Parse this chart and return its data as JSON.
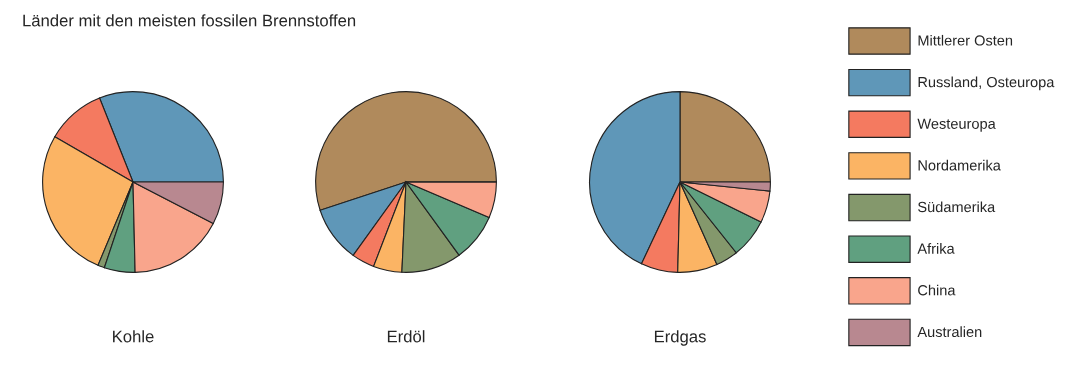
{
  "chart_data": [
    {
      "type": "pie",
      "title": "Länder mit den meisten fossilen Brennstoffen",
      "xlabel": "Kohle",
      "categories": [
        "Mittlerer Osten",
        "Russland, Osteuropa",
        "Westeuropa",
        "Nordamerika",
        "Südamerika",
        "Afrika",
        "China",
        "Australien"
      ],
      "values": [
        0,
        31,
        10.6,
        27,
        1.2,
        5.5,
        17,
        7.6
      ],
      "colors": [
        "#b08a5c",
        "#5f97b8",
        "#f47a60",
        "#fbb464",
        "#84986c",
        "#60a080",
        "#f9a58c",
        "#b88890"
      ],
      "legend": "right"
    },
    {
      "type": "pie",
      "xlabel": "Erdöl",
      "categories": [
        null,
        null,
        null,
        null,
        null,
        null,
        null,
        null
      ],
      "values": [
        55,
        10,
        4.1,
        5.1,
        10.7,
        8.6,
        6.4,
        0
      ],
      "colors": [
        "#b08a5c",
        "#5f97b8",
        "#f47a60",
        "#fbb464",
        "#84986c",
        "#60a080",
        "#f9a58c",
        "#b88890"
      ]
    },
    {
      "type": "pie",
      "xlabel": "Erdgas",
      "categories": [
        null,
        null,
        null,
        null,
        null,
        null,
        null,
        null
      ],
      "values": [
        25,
        43,
        6.6,
        7.1,
        4,
        7,
        5.7,
        1.6
      ],
      "colors": [
        "#b08a5c",
        "#5f97b8",
        "#f47a60",
        "#fbb464",
        "#84986c",
        "#60a080",
        "#f9a58c",
        "#b88890"
      ]
    }
  ]
}
